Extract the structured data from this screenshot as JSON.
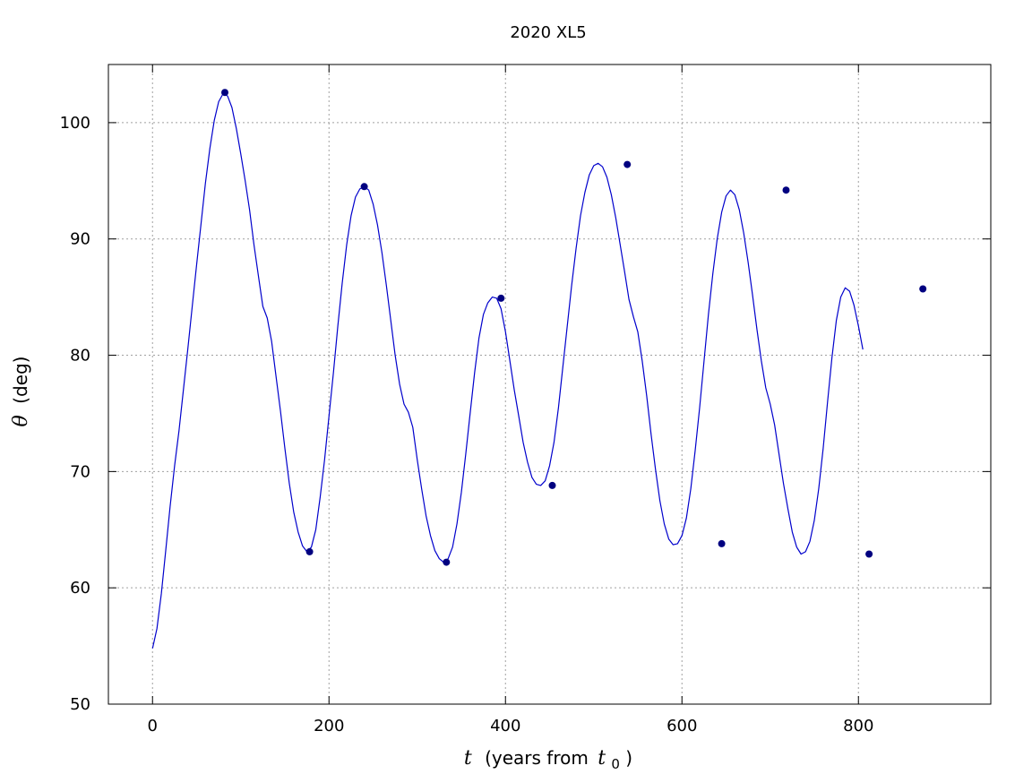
{
  "chart_data": {
    "type": "line",
    "title": "2020 XL5",
    "xlabel": {
      "var": "t",
      "text": "(years from",
      "sub_var": "t",
      "sub_index": "0",
      "close": ")"
    },
    "ylabel": {
      "var": "θ",
      "text": "(deg)"
    },
    "xlim": [
      -50,
      950
    ],
    "ylim": [
      50,
      105
    ],
    "xticks": [
      0,
      200,
      400,
      600,
      800
    ],
    "yticks": [
      50,
      60,
      70,
      80,
      90,
      100
    ],
    "grid": true,
    "line_color": "#0000cc",
    "marker_color": "#000080",
    "series": [
      {
        "values": [
          [
            0,
            54.8
          ],
          [
            5,
            56.5
          ],
          [
            10,
            59.5
          ],
          [
            15,
            63.2
          ],
          [
            20,
            67.0
          ],
          [
            25,
            70.5
          ],
          [
            30,
            73.5
          ],
          [
            35,
            77.0
          ],
          [
            40,
            80.5
          ],
          [
            45,
            84.2
          ],
          [
            50,
            87.8
          ],
          [
            55,
            91.3
          ],
          [
            60,
            94.8
          ],
          [
            65,
            97.8
          ],
          [
            70,
            100.2
          ],
          [
            75,
            101.8
          ],
          [
            80,
            102.5
          ],
          [
            85,
            102.3
          ],
          [
            90,
            101.3
          ],
          [
            95,
            99.5
          ],
          [
            100,
            97.3
          ],
          [
            105,
            95.0
          ],
          [
            110,
            92.5
          ],
          [
            115,
            89.5
          ],
          [
            120,
            86.8
          ],
          [
            125,
            84.2
          ],
          [
            130,
            83.2
          ],
          [
            135,
            81.2
          ],
          [
            140,
            78.2
          ],
          [
            145,
            75.2
          ],
          [
            150,
            72.0
          ],
          [
            155,
            69.0
          ],
          [
            160,
            66.5
          ],
          [
            165,
            64.8
          ],
          [
            170,
            63.6
          ],
          [
            175,
            63.1
          ],
          [
            180,
            63.5
          ],
          [
            185,
            65.0
          ],
          [
            190,
            67.8
          ],
          [
            195,
            71.0
          ],
          [
            200,
            74.8
          ],
          [
            205,
            78.5
          ],
          [
            210,
            82.5
          ],
          [
            215,
            86.2
          ],
          [
            220,
            89.5
          ],
          [
            225,
            92.0
          ],
          [
            230,
            93.6
          ],
          [
            235,
            94.3
          ],
          [
            240,
            94.5
          ],
          [
            245,
            94.2
          ],
          [
            250,
            93.0
          ],
          [
            255,
            91.2
          ],
          [
            260,
            88.8
          ],
          [
            265,
            86.0
          ],
          [
            270,
            83.0
          ],
          [
            275,
            80.0
          ],
          [
            280,
            77.5
          ],
          [
            285,
            75.8
          ],
          [
            290,
            75.1
          ],
          [
            295,
            73.8
          ],
          [
            300,
            71.0
          ],
          [
            305,
            68.5
          ],
          [
            310,
            66.2
          ],
          [
            315,
            64.5
          ],
          [
            320,
            63.2
          ],
          [
            325,
            62.5
          ],
          [
            330,
            62.2
          ],
          [
            335,
            62.5
          ],
          [
            340,
            63.5
          ],
          [
            345,
            65.5
          ],
          [
            350,
            68.2
          ],
          [
            355,
            71.5
          ],
          [
            360,
            75.0
          ],
          [
            365,
            78.5
          ],
          [
            370,
            81.5
          ],
          [
            375,
            83.5
          ],
          [
            380,
            84.5
          ],
          [
            385,
            85.0
          ],
          [
            390,
            84.9
          ],
          [
            395,
            84.0
          ],
          [
            400,
            82.0
          ],
          [
            405,
            79.5
          ],
          [
            410,
            77.0
          ],
          [
            415,
            74.8
          ],
          [
            420,
            72.5
          ],
          [
            425,
            70.8
          ],
          [
            430,
            69.5
          ],
          [
            435,
            68.9
          ],
          [
            440,
            68.8
          ],
          [
            445,
            69.2
          ],
          [
            450,
            70.5
          ],
          [
            455,
            72.5
          ],
          [
            460,
            75.5
          ],
          [
            465,
            79.0
          ],
          [
            470,
            82.5
          ],
          [
            475,
            86.0
          ],
          [
            480,
            89.2
          ],
          [
            485,
            92.0
          ],
          [
            490,
            94.0
          ],
          [
            495,
            95.5
          ],
          [
            500,
            96.3
          ],
          [
            505,
            96.5
          ],
          [
            510,
            96.2
          ],
          [
            515,
            95.3
          ],
          [
            520,
            93.8
          ],
          [
            525,
            91.8
          ],
          [
            530,
            89.5
          ],
          [
            535,
            87.2
          ],
          [
            540,
            84.8
          ],
          [
            545,
            83.3
          ],
          [
            550,
            82.0
          ],
          [
            555,
            79.5
          ],
          [
            560,
            76.5
          ],
          [
            565,
            73.2
          ],
          [
            570,
            70.2
          ],
          [
            575,
            67.5
          ],
          [
            580,
            65.5
          ],
          [
            585,
            64.2
          ],
          [
            590,
            63.7
          ],
          [
            595,
            63.8
          ],
          [
            600,
            64.5
          ],
          [
            605,
            66.0
          ],
          [
            610,
            68.5
          ],
          [
            615,
            71.8
          ],
          [
            620,
            75.5
          ],
          [
            625,
            79.5
          ],
          [
            630,
            83.5
          ],
          [
            635,
            87.0
          ],
          [
            640,
            90.0
          ],
          [
            645,
            92.3
          ],
          [
            650,
            93.7
          ],
          [
            655,
            94.2
          ],
          [
            660,
            93.8
          ],
          [
            665,
            92.5
          ],
          [
            670,
            90.5
          ],
          [
            675,
            88.0
          ],
          [
            680,
            85.2
          ],
          [
            685,
            82.2
          ],
          [
            690,
            79.5
          ],
          [
            695,
            77.2
          ],
          [
            700,
            75.8
          ],
          [
            705,
            74.0
          ],
          [
            710,
            71.5
          ],
          [
            715,
            69.0
          ],
          [
            720,
            66.8
          ],
          [
            725,
            64.8
          ],
          [
            730,
            63.5
          ],
          [
            735,
            62.9
          ],
          [
            740,
            63.1
          ],
          [
            745,
            64.0
          ],
          [
            750,
            65.8
          ],
          [
            755,
            68.5
          ],
          [
            760,
            72.0
          ],
          [
            765,
            76.0
          ],
          [
            770,
            79.8
          ],
          [
            775,
            83.0
          ],
          [
            780,
            85.0
          ],
          [
            785,
            85.8
          ],
          [
            790,
            85.5
          ],
          [
            795,
            84.3
          ],
          [
            800,
            82.5
          ],
          [
            805,
            80.5
          ]
        ],
        "markers": [
          [
            82,
            102.6
          ],
          [
            178,
            63.1
          ],
          [
            240,
            94.5
          ],
          [
            333,
            62.2
          ],
          [
            395,
            84.9
          ],
          [
            453,
            68.8
          ],
          [
            538,
            96.4
          ],
          [
            645,
            63.8
          ],
          [
            718,
            94.2
          ],
          [
            812,
            62.9
          ],
          [
            873,
            85.7
          ]
        ]
      }
    ]
  }
}
